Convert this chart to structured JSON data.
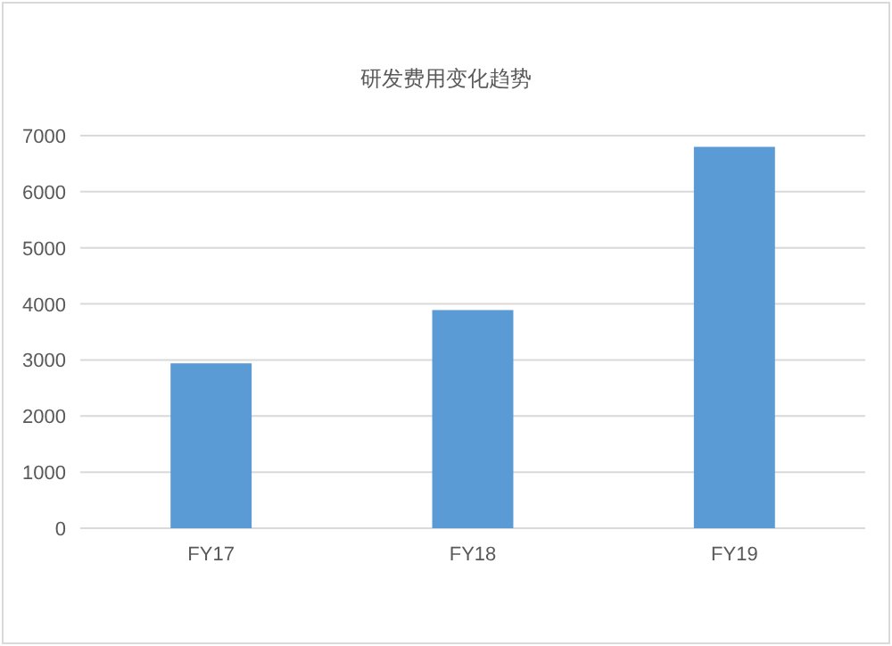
{
  "chart_data": {
    "type": "bar",
    "title": "研发费用变化趋势",
    "categories": [
      "FY17",
      "FY18",
      "FY19"
    ],
    "values": [
      2940,
      3890,
      6800
    ],
    "color": "#5b9bd5",
    "ylim": [
      0,
      7000
    ],
    "yticks": [
      0,
      1000,
      2000,
      3000,
      4000,
      5000,
      6000,
      7000
    ],
    "grid": "y"
  }
}
